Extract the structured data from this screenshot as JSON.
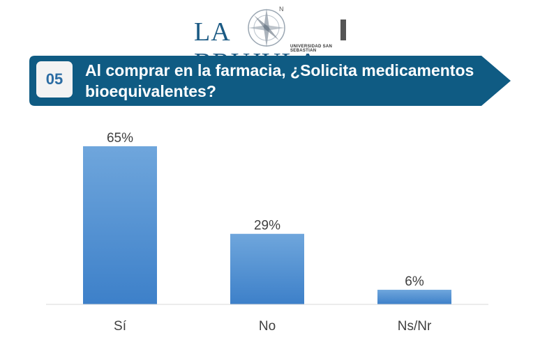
{
  "logo": {
    "text": "LA BRUJULA",
    "subtitle": "UNIVERSIDAD SAN SEBASTIAN",
    "compass_letter": "N"
  },
  "question": {
    "number": "05",
    "text": "Al comprar en la farmacia, ¿Solicita medicamentos bioequivalentes?"
  },
  "colors": {
    "banner": "#0f5b83",
    "bar_top": "#6fa6dc",
    "bar_bottom": "#3d80c9",
    "label": "#3f3f3f"
  },
  "chart_data": {
    "type": "bar",
    "categories": [
      "Sí",
      "No",
      "Ns/Nr"
    ],
    "values": [
      65,
      29,
      6
    ],
    "data_labels": [
      "65%",
      "29%",
      "6%"
    ],
    "ylim": [
      0,
      65
    ],
    "grid": false,
    "legend": "none"
  }
}
